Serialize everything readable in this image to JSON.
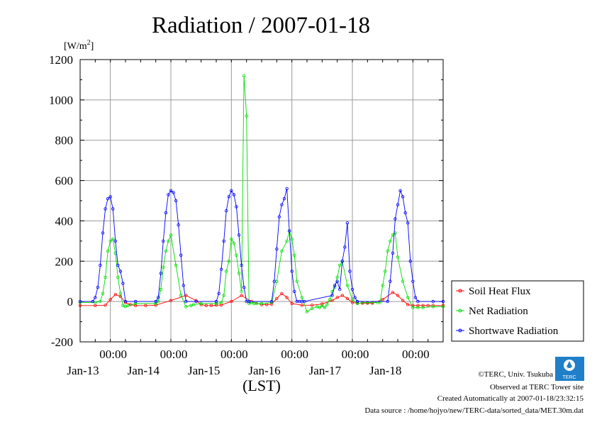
{
  "chart_data": {
    "type": "line",
    "title": "Radiation / 2007-01-18",
    "ylabel_unit": "[W/m2]",
    "xlabel": "(LST)",
    "ylim": [
      -200,
      1200
    ],
    "yticks": [
      -200,
      0,
      200,
      400,
      600,
      800,
      1000,
      1200
    ],
    "ytick_labels": [
      "-200",
      "0",
      "200",
      "400",
      "600",
      "800",
      "1000",
      "1200"
    ],
    "xlim_hours": [
      -36,
      108
    ],
    "xtick_labels_time": [
      "00:00",
      "00:00",
      "00:00",
      "00:00",
      "00:00",
      "00:00"
    ],
    "xtick_labels_date": [
      "Jan-13",
      "Jan-14",
      "Jan-15",
      "Jan-16",
      "Jan-17",
      "Jan-18"
    ],
    "grid": true,
    "legend_position": "bottom-right-outside",
    "series": [
      {
        "name": "Soil Heat Flux",
        "color": "#ff0000",
        "x": [
          -36,
          -30,
          -26,
          -24,
          -22,
          -20,
          -18,
          -16,
          -14,
          -10,
          -6,
          0,
          6,
          10,
          12,
          14,
          16,
          18,
          20,
          24,
          28,
          32,
          36,
          38,
          40,
          42,
          44,
          46,
          48,
          52,
          56,
          60,
          64,
          66,
          68,
          70,
          72,
          74,
          76,
          78,
          80,
          84,
          88,
          90,
          92,
          94,
          96,
          98,
          100,
          102,
          104,
          108
        ],
        "values": [
          -20,
          -20,
          -18,
          10,
          35,
          25,
          -5,
          -15,
          -20,
          -20,
          -18,
          5,
          30,
          5,
          -15,
          -20,
          -20,
          -18,
          -17,
          0,
          30,
          0,
          -15,
          -15,
          -13,
          15,
          40,
          20,
          -10,
          -18,
          -18,
          -12,
          5,
          20,
          30,
          15,
          -5,
          -8,
          -8,
          -8,
          -8,
          10,
          45,
          30,
          5,
          -15,
          -20,
          -20,
          -20,
          -20,
          -20,
          -20
        ]
      },
      {
        "name": "Net Radiation",
        "color": "#00dd00",
        "x": [
          -36,
          -30,
          -28,
          -27,
          -26,
          -25,
          -24,
          -23,
          -22,
          -21,
          -20,
          -19,
          -18,
          -17,
          -14,
          -6,
          -5,
          -4,
          -3,
          -2,
          -1,
          0,
          2,
          4,
          6,
          8,
          9,
          12,
          18,
          20,
          21,
          22,
          23,
          24,
          25,
          26,
          27,
          28,
          29,
          30,
          31,
          32,
          33,
          34,
          36,
          40,
          42,
          44,
          46,
          47,
          48,
          49,
          50,
          52,
          54,
          56,
          58,
          59,
          60,
          61,
          62,
          63,
          64,
          65,
          66,
          67,
          68,
          70,
          72,
          74,
          76,
          78,
          80,
          82,
          83,
          84,
          85,
          86,
          87,
          88,
          89,
          90,
          92,
          94,
          96,
          98,
          100,
          104,
          108
        ],
        "values": [
          -5,
          -5,
          0,
          40,
          120,
          250,
          300,
          310,
          240,
          120,
          40,
          -20,
          -25,
          -20,
          -10,
          -10,
          0,
          60,
          170,
          250,
          300,
          330,
          180,
          30,
          -25,
          -20,
          -15,
          -10,
          -10,
          -5,
          30,
          150,
          200,
          310,
          290,
          230,
          140,
          50,
          1120,
          920,
          -10,
          -5,
          -10,
          -10,
          -10,
          -5,
          100,
          250,
          300,
          350,
          310,
          230,
          100,
          20,
          -50,
          -35,
          -25,
          -30,
          -20,
          -30,
          -15,
          10,
          50,
          70,
          120,
          180,
          200,
          80,
          10,
          -10,
          -5,
          -5,
          -5,
          -5,
          -5,
          80,
          150,
          250,
          300,
          330,
          340,
          220,
          100,
          20,
          -30,
          -30,
          -30,
          -25,
          -25
        ]
      },
      {
        "name": "Shortwave Radiation",
        "color": "#0000ff",
        "x": [
          -36,
          -31,
          -30,
          -29,
          -28,
          -27,
          -26,
          -25,
          -24,
          -23,
          -22,
          -21,
          -20,
          -19,
          -18,
          -14,
          -6,
          -5,
          -4,
          -3,
          -2,
          -1,
          0,
          1,
          2,
          3,
          4,
          5,
          6,
          10,
          18,
          19,
          20,
          21,
          22,
          23,
          24,
          25,
          26,
          27,
          28,
          29,
          30,
          31,
          40,
          41,
          42,
          43,
          44,
          45,
          46,
          47,
          48,
          49,
          50,
          51,
          52,
          53,
          64,
          65,
          66,
          67,
          68,
          69,
          70,
          71,
          72,
          73,
          74,
          86,
          87,
          88,
          89,
          90,
          91,
          92,
          93,
          94,
          95,
          96,
          97,
          98,
          104,
          108
        ],
        "values": [
          0,
          0,
          20,
          70,
          180,
          340,
          460,
          510,
          520,
          460,
          300,
          180,
          150,
          90,
          0,
          0,
          0,
          20,
          140,
          300,
          440,
          530,
          550,
          540,
          500,
          380,
          230,
          80,
          0,
          0,
          0,
          40,
          160,
          300,
          450,
          520,
          550,
          530,
          470,
          330,
          180,
          70,
          0,
          0,
          0,
          100,
          260,
          420,
          480,
          510,
          560,
          350,
          150,
          50,
          0,
          0,
          0,
          0,
          30,
          80,
          100,
          60,
          200,
          270,
          390,
          150,
          60,
          20,
          0,
          0,
          100,
          240,
          410,
          480,
          550,
          520,
          440,
          390,
          200,
          100,
          20,
          0,
          0,
          0
        ]
      }
    ]
  },
  "legend": {
    "items": [
      "Soil Heat Flux",
      "Net Radiation",
      "Shortwave Radiation"
    ]
  },
  "footer": {
    "copyright": "©TERC, Univ. Tsukuba",
    "site": "Observed at TERC Tower site",
    "created": "Created Automatically at 2007-01-18/23:32:15",
    "source": "Data source : /home/hojyo/new/TERC-data/sorted_data/MET.30m.dat"
  },
  "logo": {
    "text": "TERC"
  }
}
